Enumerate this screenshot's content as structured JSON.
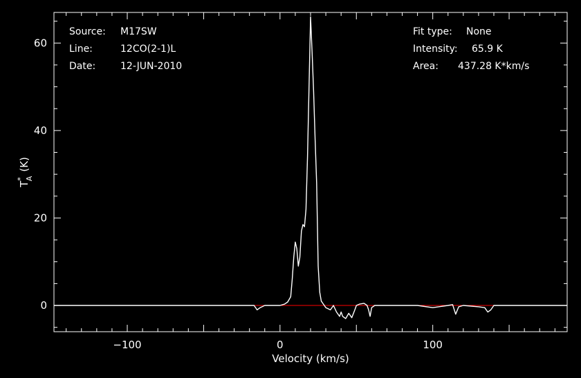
{
  "info": {
    "source_label": "Source:",
    "source_value": "M17SW",
    "line_label": "Line:",
    "line_value": "12CO(2-1)L",
    "date_label": "Date:",
    "date_value": "12-JUN-2010",
    "fit_label": "Fit type:",
    "fit_value": "None",
    "intensity_label": "Intensity:",
    "intensity_value": "65.9 K",
    "area_label": "Area:",
    "area_value": "437.28 K*km/s"
  },
  "colors": {
    "background": "#000000",
    "foreground": "#ffffff",
    "baseline": "#ff0000"
  },
  "chart_data": {
    "type": "line",
    "title": "",
    "xlabel": "Velocity (km/s)",
    "ylabel_main": "T",
    "ylabel_sup": "*",
    "ylabel_sub": "A",
    "ylabel_unit": "(K)",
    "xlim": [
      -148,
      188
    ],
    "ylim": [
      -6,
      67
    ],
    "xticks": [
      -100,
      0,
      100
    ],
    "xtick_labels": [
      "−100",
      "0",
      "100"
    ],
    "yticks": [
      0,
      20,
      40,
      60
    ],
    "ytick_labels": [
      "0",
      "20",
      "40",
      "60"
    ],
    "grid": false,
    "baseline_y": 0,
    "series": [
      {
        "x": [
          -148,
          -120,
          -90,
          -60,
          -30,
          -17,
          -15,
          -13,
          -10,
          -5,
          0,
          3,
          5,
          7,
          8,
          9,
          10,
          11,
          12,
          13,
          14,
          15,
          16,
          17,
          18,
          19,
          20,
          21,
          22,
          23,
          24,
          25,
          26,
          27,
          28,
          30,
          33,
          35,
          37,
          39,
          40,
          41,
          43,
          45,
          47,
          49,
          50,
          52,
          55,
          57,
          58,
          59,
          60,
          62,
          70,
          80,
          90,
          100,
          110,
          113,
          115,
          117,
          120,
          130,
          134,
          136,
          138,
          140,
          150,
          165,
          188
        ],
        "values": [
          0,
          0,
          0,
          0,
          0,
          0,
          -1,
          -0.5,
          0,
          0,
          0,
          0.3,
          0.8,
          2,
          6,
          11,
          14.5,
          13,
          9,
          11,
          17,
          18.5,
          18,
          22,
          34,
          50,
          66,
          58,
          49,
          38,
          28,
          9,
          3,
          1,
          0.5,
          -0.5,
          -1,
          0,
          -1.5,
          -2.5,
          -1.5,
          -2.5,
          -3,
          -1.8,
          -2.8,
          -1,
          0,
          0.3,
          0.5,
          0,
          -1,
          -2.5,
          -0.5,
          0,
          0,
          0,
          0,
          -0.5,
          0,
          0.2,
          -2,
          -0.3,
          0,
          -0.3,
          -0.5,
          -1.5,
          -1,
          0,
          0,
          0,
          0
        ]
      }
    ]
  }
}
